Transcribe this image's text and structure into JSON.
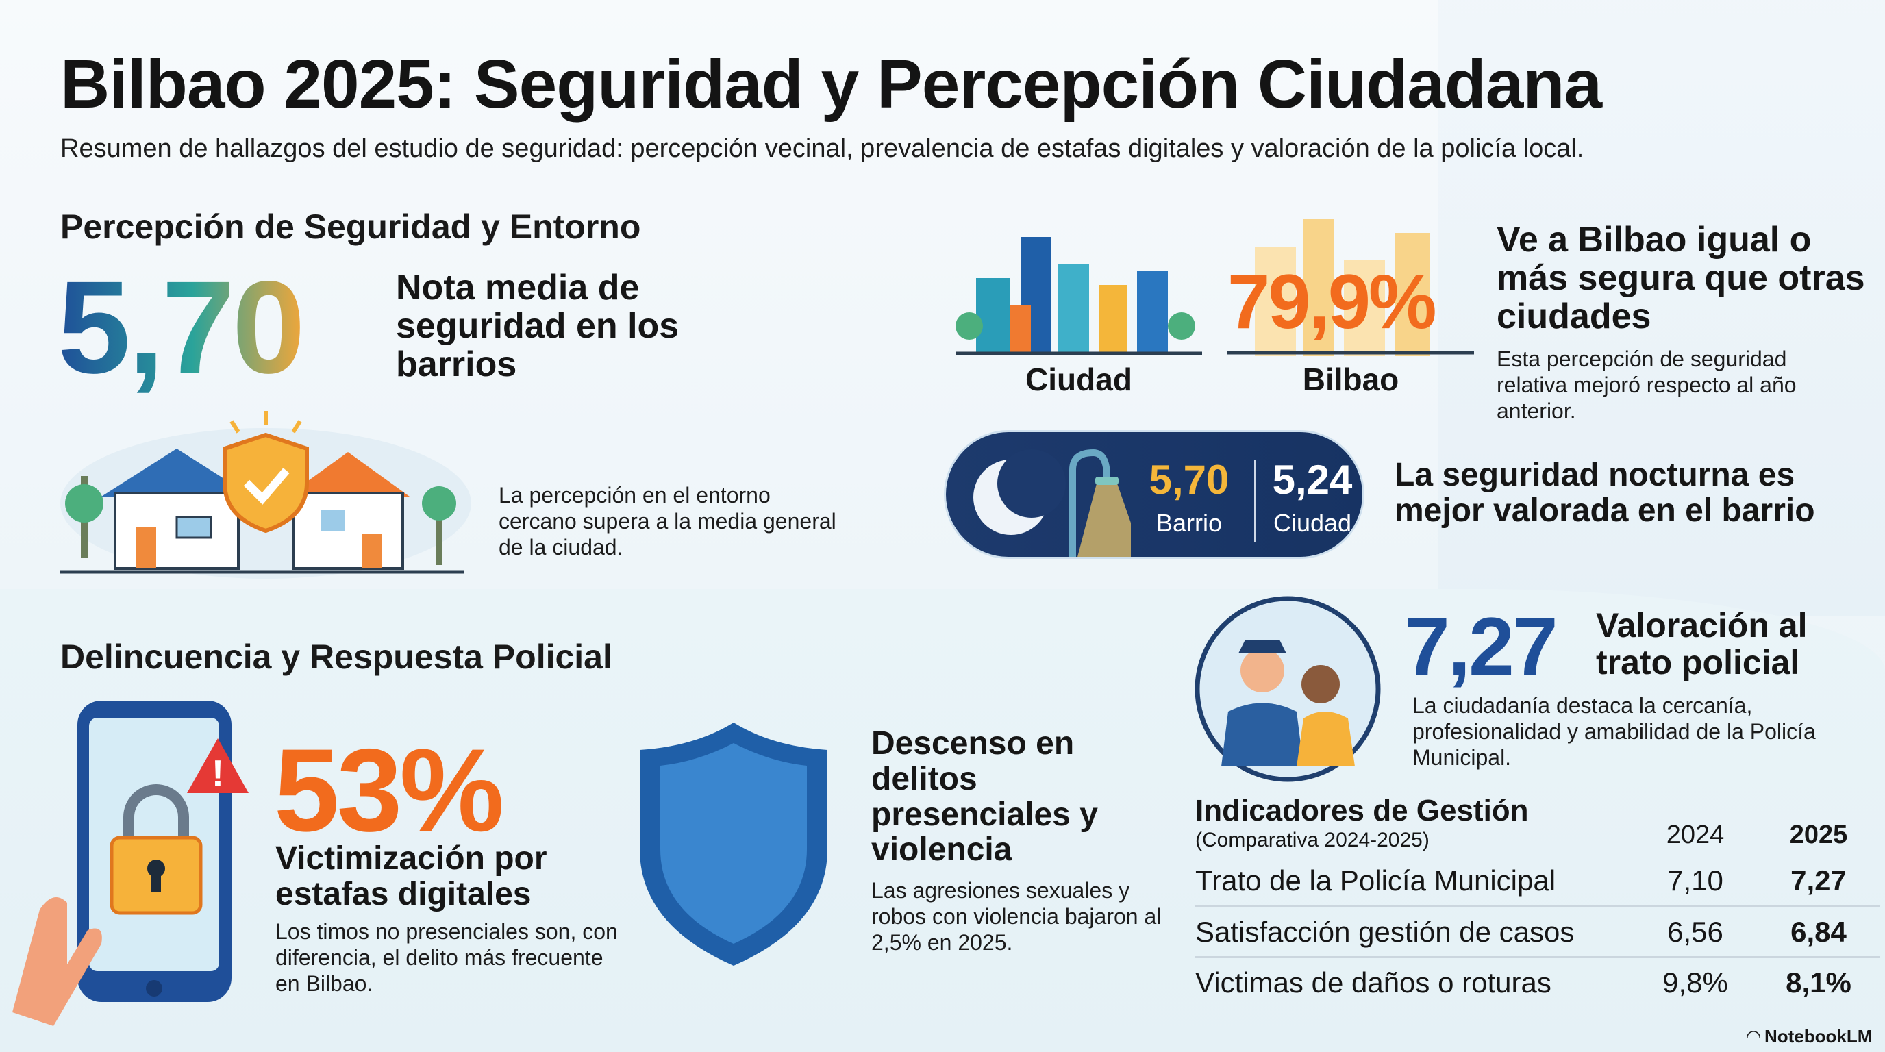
{
  "title": "Bilbao 2025: Seguridad y Percepción Ciudadana",
  "subtitle": "Resumen de hallazgos del estudio de seguridad: percepción vecinal, prevalencia de estafas digitales y valoración de la policía local.",
  "section1": {
    "heading": "Percepción de Seguridad y Entorno",
    "score": "5,70",
    "score_label": "Nota media de seguridad en los barrios",
    "environment_note": "La percepción en el entorno cercano supera a la media general de la ciudad.",
    "compare": {
      "left_label": "Ciudad",
      "right_label": "Bilbao",
      "percent": "79,9%",
      "headline": "Ve a Bilbao igual o más segura que otras ciudades",
      "note": "Esta percepción de seguridad relativa mejoró respecto al año anterior."
    },
    "night": {
      "barrio_value": "5,70",
      "barrio_label": "Barrio",
      "ciudad_value": "5,24",
      "ciudad_label": "Ciudad",
      "headline": "La seguridad nocturna es mejor valorada en el barrio"
    }
  },
  "section2": {
    "heading": "Delincuencia y Respuesta Policial",
    "scam_percent": "53%",
    "scam_label": "Victimización por estafas digitales",
    "scam_note": "Los timos no presenciales son, con diferencia, el delito más frecuente en Bilbao.",
    "decline_headline": "Descenso en delitos presenciales y violencia",
    "decline_note": "Las agresiones sexuales y robos con violencia bajaron al 2,5% en 2025.",
    "police_score": "7,27",
    "police_label": "Valoración al trato policial",
    "police_note": "La ciudadanía destaca la cercanía, profesionalidad y amabilidad de la Policía Municipal."
  },
  "table": {
    "title": "Indicadores de Gestión",
    "subtitle": "(Comparativa 2024-2025)",
    "columns": [
      "2024",
      "2025"
    ],
    "rows": [
      {
        "label": "Trato de la Policía Municipal",
        "v2024": "7,10",
        "v2025": "7,27"
      },
      {
        "label": "Satisfacción gestión de casos",
        "v2024": "6,56",
        "v2025": "6,84"
      },
      {
        "label": "Victimas de daños o roturas",
        "v2024": "9,8%",
        "v2025": "8,1%"
      }
    ]
  },
  "brand": "NotebookLM",
  "colors": {
    "orange": "#f26b1d",
    "navy": "#1d3a6d",
    "blue": "#1f5fa8",
    "gold": "#f4b63a",
    "teal": "#2a9d8f"
  }
}
